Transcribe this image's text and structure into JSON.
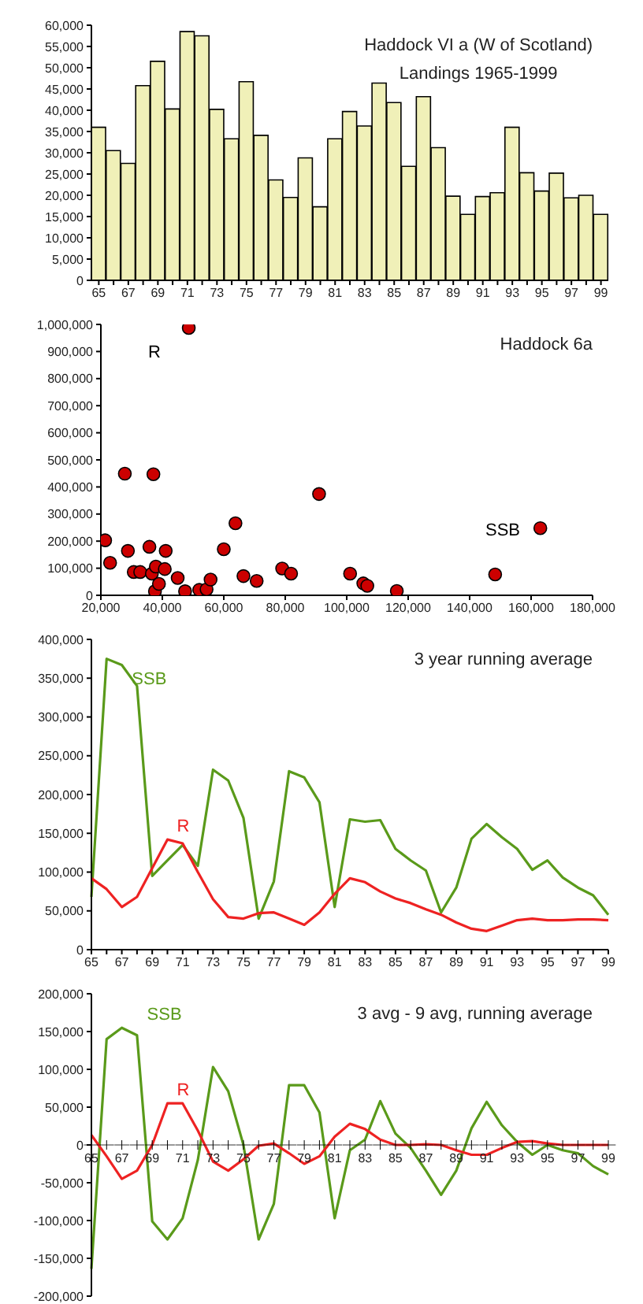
{
  "chart_data": [
    {
      "type": "bar",
      "title": "Haddock VI a (W of Scotland)",
      "subtitle": "Landings 1965-1999",
      "categories": [
        "65",
        null,
        "67",
        null,
        "69",
        null,
        "71",
        null,
        "73",
        null,
        "75",
        null,
        "77",
        null,
        "79",
        null,
        "81",
        null,
        "83",
        null,
        "85",
        null,
        "87",
        null,
        "89",
        null,
        "91",
        null,
        "93",
        null,
        "95",
        null,
        "97",
        null,
        "99"
      ],
      "values": [
        36000,
        30500,
        27500,
        45800,
        51500,
        40300,
        58500,
        57500,
        40200,
        33300,
        46700,
        34100,
        23600,
        19500,
        28800,
        17300,
        33300,
        39700,
        36300,
        46400,
        41800,
        26800,
        43200,
        31200,
        19800,
        15500,
        19700,
        20600,
        36000,
        25300,
        21000,
        25200,
        19400,
        20000,
        15500
      ],
      "color": "#f0f0b8",
      "ylim": [
        0,
        60000
      ],
      "yticks": [
        {
          "value": 0,
          "label": "0"
        },
        {
          "value": 5000,
          "label": "5,000"
        },
        {
          "value": 10000,
          "label": "10,000"
        },
        {
          "value": 15000,
          "label": "15,000"
        },
        {
          "value": 20000,
          "label": "20,000"
        },
        {
          "value": 25000,
          "label": "25,000"
        },
        {
          "value": 30000,
          "label": "30,000"
        },
        {
          "value": 35000,
          "label": "35,000"
        },
        {
          "value": 40000,
          "label": "40,000"
        },
        {
          "value": 45000,
          "label": "45,000"
        },
        {
          "value": 50000,
          "label": "50,000"
        },
        {
          "value": 55000,
          "label": "55,000"
        },
        {
          "value": 60000,
          "label": "60,000"
        }
      ]
    },
    {
      "type": "scatter",
      "title": "Haddock 6a",
      "xlabel": "SSB",
      "ylabel": "R",
      "marker": "circle",
      "color": "#cc0000",
      "x": [
        21400,
        23000,
        27800,
        28800,
        30700,
        32800,
        35800,
        37100,
        36600,
        37900,
        37600,
        38900,
        40800,
        41100,
        45000,
        47400,
        48600,
        52000,
        54400,
        55700,
        60000,
        63800,
        66400,
        70700,
        79000,
        81900,
        91000,
        101100,
        105400,
        106700,
        116300,
        148300,
        163000
      ],
      "values": [
        203000,
        120000,
        449000,
        164000,
        86000,
        86000,
        179000,
        447000,
        80000,
        106000,
        15000,
        42000,
        97000,
        164000,
        64000,
        15000,
        987000,
        20000,
        22000,
        58000,
        170000,
        266000,
        71000,
        53000,
        99000,
        80000,
        374000,
        80000,
        44000,
        35000,
        16000,
        77000,
        248000
      ],
      "xlim": [
        20000,
        180000
      ],
      "xticks": [
        {
          "value": 20000,
          "label": "20,000"
        },
        {
          "value": 40000,
          "label": "40,000"
        },
        {
          "value": 60000,
          "label": "60,000"
        },
        {
          "value": 80000,
          "label": "80,000"
        },
        {
          "value": 100000,
          "label": "100,000"
        },
        {
          "value": 120000,
          "label": "120,000"
        },
        {
          "value": 140000,
          "label": "140,000"
        },
        {
          "value": 160000,
          "label": "160,000"
        },
        {
          "value": 180000,
          "label": "180,000"
        }
      ],
      "ylim": [
        0,
        1000000
      ],
      "yticks": [
        {
          "value": 0,
          "label": "0"
        },
        {
          "value": 100000,
          "label": "100,000"
        },
        {
          "value": 200000,
          "label": "200,000"
        },
        {
          "value": 300000,
          "label": "300,000"
        },
        {
          "value": 400000,
          "label": "400,000"
        },
        {
          "value": 500000,
          "label": "500,000"
        },
        {
          "value": 600000,
          "label": "600,000"
        },
        {
          "value": 700000,
          "label": "700,000"
        },
        {
          "value": 800000,
          "label": "800,000"
        },
        {
          "value": 900000,
          "label": "900,000"
        },
        {
          "value": 1000000,
          "label": "1,000,000"
        }
      ]
    },
    {
      "type": "line",
      "title": "3 year running average",
      "categories": [
        "65",
        null,
        "67",
        null,
        "69",
        null,
        "71",
        null,
        "73",
        null,
        "75",
        null,
        "77",
        null,
        "79",
        null,
        "81",
        null,
        "83",
        null,
        "85",
        null,
        "87",
        null,
        "89",
        null,
        "91",
        null,
        "93",
        null,
        "95",
        null,
        "97",
        null,
        "99"
      ],
      "series": [
        {
          "name": "SSB",
          "color": "#5a9a1a",
          "values": [
            68000,
            375000,
            367000,
            340000,
            95000,
            115000,
            135000,
            108000,
            232000,
            218000,
            170000,
            40000,
            88000,
            230000,
            222000,
            190000,
            55000,
            168000,
            165000,
            167000,
            130000,
            115000,
            102000,
            48000,
            80000,
            143000,
            162000,
            145000,
            130000,
            103000,
            115000,
            93000,
            80000,
            70000,
            45000
          ]
        },
        {
          "name": "R",
          "color": "#ee2222",
          "values": [
            92000,
            78000,
            55000,
            68000,
            105000,
            142000,
            137000,
            100000,
            65000,
            42000,
            40000,
            47000,
            48000,
            40000,
            32000,
            48000,
            72000,
            92000,
            87000,
            75000,
            66000,
            60000,
            52000,
            45000,
            35000,
            27000,
            24000,
            31000,
            38000,
            40000,
            38000,
            38000,
            39000,
            39000,
            38000
          ]
        }
      ],
      "ylim": [
        0,
        400000
      ],
      "yticks": [
        {
          "value": 0,
          "label": "0"
        },
        {
          "value": 50000,
          "label": "50,000"
        },
        {
          "value": 100000,
          "label": "100,000"
        },
        {
          "value": 150000,
          "label": "150,000"
        },
        {
          "value": 200000,
          "label": "200,000"
        },
        {
          "value": 250000,
          "label": "250,000"
        },
        {
          "value": 300000,
          "label": "300,000"
        },
        {
          "value": 350000,
          "label": "350,000"
        },
        {
          "value": 400000,
          "label": "400,000"
        }
      ]
    },
    {
      "type": "line",
      "title": "3 avg - 9 avg, running average",
      "categories": [
        "65",
        null,
        "67",
        null,
        "69",
        null,
        "71",
        null,
        "73",
        null,
        "75",
        null,
        "77",
        null,
        "79",
        null,
        "81",
        null,
        "83",
        null,
        "85",
        null,
        "87",
        null,
        "89",
        null,
        "91",
        null,
        "93",
        null,
        "95",
        null,
        "97",
        null,
        "99"
      ],
      "series": [
        {
          "name": "SSB",
          "color": "#5a9a1a",
          "values": [
            -164000,
            140000,
            155000,
            145000,
            -101000,
            -125000,
            -97000,
            -20000,
            103000,
            71000,
            0,
            -125000,
            -78000,
            79000,
            79000,
            43000,
            -97000,
            -7000,
            7000,
            58000,
            15000,
            -4000,
            -34000,
            -66000,
            -34000,
            22000,
            57000,
            26000,
            4000,
            -13000,
            0,
            -7000,
            -11000,
            -28000,
            -39000
          ]
        },
        {
          "name": "R",
          "color": "#ee2222",
          "values": [
            13000,
            -15000,
            -45000,
            -34000,
            0,
            55000,
            55000,
            19000,
            -22000,
            -34000,
            -19000,
            -1000,
            2000,
            -11000,
            -25000,
            -15000,
            11000,
            28000,
            21000,
            7000,
            0,
            0,
            1000,
            0,
            -7000,
            -13000,
            -13000,
            -4000,
            4000,
            5000,
            2000,
            0,
            0,
            0,
            0
          ]
        }
      ],
      "ylim": [
        -200000,
        200000
      ],
      "yticks": [
        {
          "value": -200000,
          "label": "-200,000"
        },
        {
          "value": -150000,
          "label": "-150,000"
        },
        {
          "value": -100000,
          "label": "-100,000"
        },
        {
          "value": -50000,
          "label": "-50,000"
        },
        {
          "value": 0,
          "label": "0"
        },
        {
          "value": 50000,
          "label": "50,000"
        },
        {
          "value": 100000,
          "label": "100,000"
        },
        {
          "value": 150000,
          "label": "150,000"
        },
        {
          "value": 200000,
          "label": "200,000"
        }
      ]
    }
  ]
}
